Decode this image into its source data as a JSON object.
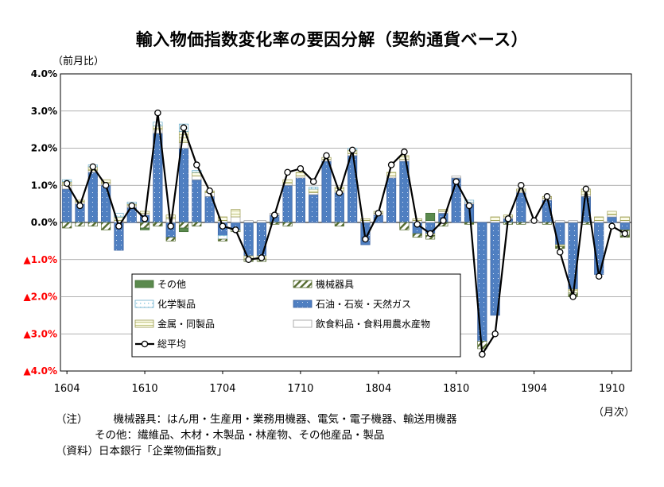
{
  "title": "輸入物価指数変化率の要因分解（契約通貨ベース）",
  "unit_label": "（前月比）",
  "x_unit_label": "（月次）",
  "notes": {
    "line1_prefix": "（注）",
    "line1_text": "機械器具：はん用・生産用・業務用機器、電気・電子機器、輸送用機器",
    "line2_text": "その他：繊維品、木材・木製品・林産物、その他産品・製品",
    "line3_text": "（資料）日本銀行「企業物価指数」"
  },
  "colors": {
    "other": "#5b8a4e",
    "machinery": "#556b2f",
    "chemical": "#8ec9df",
    "oil": "#4f7fc1",
    "metal": "#b5b86a",
    "food": "#bbbbbb",
    "negative_tick": "#ff0000"
  },
  "chart_data": {
    "type": "bar",
    "stacked": true,
    "title": "輸入物価指数変化率の要因分解（契約通貨ベース）",
    "ylabel": "（前月比）",
    "xlabel": "（月次）",
    "ylim": [
      -4.0,
      4.0
    ],
    "y_ticks": [
      "4.0%",
      "3.0%",
      "2.0%",
      "1.0%",
      "0.0%",
      "▲1.0%",
      "▲2.0%",
      "▲3.0%",
      "▲4.0%"
    ],
    "x_tick_labels": [
      "1604",
      "1610",
      "1704",
      "1710",
      "1804",
      "1810",
      "1904",
      "1910"
    ],
    "legend_position": "bottom-left inside plot",
    "categories": [
      "1604",
      "1605",
      "1606",
      "1607",
      "1608",
      "1609",
      "1610",
      "1611",
      "1612",
      "1701",
      "1702",
      "1703",
      "1704",
      "1705",
      "1706",
      "1707",
      "1708",
      "1709",
      "1710",
      "1711",
      "1712",
      "1801",
      "1802",
      "1803",
      "1804",
      "1805",
      "1806",
      "1807",
      "1808",
      "1809",
      "1810",
      "1811",
      "1812",
      "1901",
      "1902",
      "1903",
      "1904",
      "1905",
      "1906",
      "1907",
      "1908",
      "1909",
      "1910",
      "1911"
    ],
    "series": [
      {
        "name": "その他",
        "key": "other",
        "values": [
          0,
          0,
          0,
          0,
          0,
          0,
          -0.05,
          0,
          0,
          -0.1,
          0,
          0,
          0,
          0,
          0,
          0,
          0,
          0,
          0,
          0,
          0,
          0,
          0,
          0,
          0,
          0,
          0,
          0,
          0.2,
          0,
          0,
          0,
          0,
          0,
          0,
          0,
          0,
          0,
          0,
          0,
          0,
          0,
          0,
          0
        ]
      },
      {
        "name": "機械器具",
        "key": "machinery",
        "values": [
          -0.15,
          -0.1,
          -0.1,
          -0.2,
          0,
          0,
          -0.15,
          -0.1,
          -0.1,
          -0.15,
          -0.1,
          0,
          -0.05,
          -0.05,
          -0.05,
          -0.05,
          -0.05,
          -0.1,
          0,
          0,
          0,
          -0.1,
          0,
          0,
          0,
          0,
          -0.2,
          -0.1,
          -0.1,
          -0.1,
          0,
          -0.05,
          -0.2,
          0,
          -0.05,
          -0.05,
          0,
          -0.05,
          -0.05,
          -0.1,
          -0.05,
          0,
          0,
          -0.2
        ]
      },
      {
        "name": "化学製品",
        "key": "chemical",
        "values": [
          0.05,
          0,
          0.05,
          0,
          0.1,
          0.05,
          0,
          0.1,
          0,
          0.2,
          0.05,
          0,
          -0.1,
          0,
          0,
          0,
          0,
          0,
          0,
          0.05,
          0,
          0,
          0.05,
          0,
          0,
          0,
          0,
          0,
          0,
          0,
          0,
          0.05,
          0,
          0,
          0,
          0,
          0,
          0,
          0,
          0,
          0,
          0,
          0,
          0
        ]
      },
      {
        "name": "石油・石炭・天然ガス",
        "key": "oil",
        "values": [
          0.9,
          0.5,
          1.35,
          1.0,
          -0.75,
          0.4,
          0.2,
          2.4,
          -0.4,
          2.0,
          1.15,
          0.7,
          -0.35,
          -0.2,
          -0.9,
          -0.9,
          0.2,
          1.0,
          1.2,
          0.75,
          1.65,
          0.8,
          1.8,
          -0.6,
          0.2,
          1.2,
          1.65,
          -0.3,
          -0.3,
          0.25,
          1.2,
          0.5,
          -3.2,
          -2.5,
          0.1,
          0.8,
          0,
          0.6,
          -0.6,
          -1.8,
          0.7,
          -1.4,
          0.15,
          -0.2
        ]
      },
      {
        "name": "金属・同製品",
        "key": "metal",
        "values": [
          0.1,
          0.05,
          0.1,
          0.1,
          0.1,
          0.05,
          0.05,
          0.1,
          0.1,
          0.3,
          0.1,
          0.05,
          0.1,
          0.2,
          -0.1,
          -0.1,
          0,
          0.1,
          0.1,
          0.1,
          0.05,
          0.1,
          0.1,
          0.05,
          0.05,
          0.1,
          0.1,
          0.05,
          -0.05,
          0.05,
          0,
          0,
          0,
          0.1,
          0.05,
          0.05,
          0,
          0.05,
          -0.05,
          -0.1,
          0.15,
          0.1,
          0.1,
          0.1
        ]
      },
      {
        "name": "飲食料品・食料用農水産物",
        "key": "food",
        "values": [
          0.1,
          0.05,
          0.05,
          0.05,
          0.05,
          0.05,
          0.05,
          0.1,
          0.1,
          0.15,
          0.1,
          0.1,
          0.05,
          0.15,
          0.05,
          0.05,
          0.05,
          0.05,
          0.05,
          0.05,
          0.05,
          0.05,
          0.05,
          0.05,
          0.05,
          0.05,
          0.05,
          0.05,
          0.05,
          0.05,
          0.05,
          0.05,
          0,
          0.05,
          0.05,
          0.05,
          0.05,
          0.05,
          0.05,
          0.05,
          0.05,
          0.05,
          0.05,
          0.05
        ]
      }
    ],
    "total": {
      "name": "総平均",
      "values": [
        1.05,
        0.45,
        1.5,
        1.0,
        -0.1,
        0.45,
        0.1,
        2.95,
        -0.1,
        2.55,
        1.55,
        0.85,
        -0.1,
        -0.2,
        -1.0,
        -0.95,
        0.2,
        1.35,
        1.45,
        1.1,
        1.8,
        0.8,
        1.95,
        -0.45,
        0.25,
        1.55,
        1.9,
        -0.05,
        -0.3,
        0.05,
        1.1,
        0.45,
        -3.55,
        -3.0,
        0.1,
        1.0,
        0.05,
        0.7,
        -0.8,
        -2.0,
        0.9,
        -1.45,
        -0.1,
        -0.3
      ]
    }
  }
}
